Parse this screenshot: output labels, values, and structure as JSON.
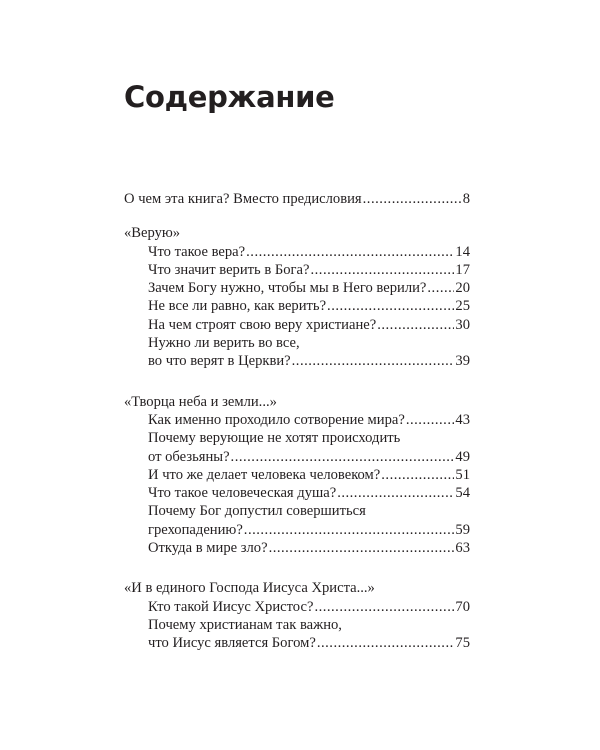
{
  "title": "Содержание",
  "sections": [
    {
      "heading": null,
      "entries": [
        {
          "lines": [
            "О чем эта книга? Вместо предисловия"
          ],
          "page": "8",
          "top": true
        }
      ]
    },
    {
      "heading": "«Верую»",
      "entries": [
        {
          "lines": [
            "Что такое вера?"
          ],
          "page": "14"
        },
        {
          "lines": [
            "Что значит верить в Бога?"
          ],
          "page": "17"
        },
        {
          "lines": [
            "Зачем Богу нужно, чтобы мы в Него верили?"
          ],
          "page": "20"
        },
        {
          "lines": [
            "Не все ли равно, как верить?"
          ],
          "page": "25"
        },
        {
          "lines": [
            "На чем строят свою веру христиане?"
          ],
          "page": "30"
        },
        {
          "lines": [
            "Нужно ли верить во все,",
            "во что верят в Церкви?"
          ],
          "page": "39"
        }
      ]
    },
    {
      "heading": "«Творца неба и земли...»",
      "entries": [
        {
          "lines": [
            "Как именно проходило сотворение мира? "
          ],
          "page": "43"
        },
        {
          "lines": [
            "Почему верующие не хотят происходить",
            "от обезьяны?"
          ],
          "page": "49"
        },
        {
          "lines": [
            "И что же делает человека человеком? "
          ],
          "page": "51"
        },
        {
          "lines": [
            "Что такое человеческая душа?"
          ],
          "page": "54"
        },
        {
          "lines": [
            "Почему Бог допустил совершиться",
            "грехопадению?"
          ],
          "page": "59"
        },
        {
          "lines": [
            "Откуда в мире зло? "
          ],
          "page": "63"
        }
      ]
    },
    {
      "heading": "«И в единого Господа Иисуса Христа...»",
      "entries": [
        {
          "lines": [
            "Кто такой Иисус Христос?"
          ],
          "page": "70"
        },
        {
          "lines": [
            "Почему христианам так важно,",
            "что Иисус является Богом?"
          ],
          "page": "75"
        }
      ]
    }
  ]
}
